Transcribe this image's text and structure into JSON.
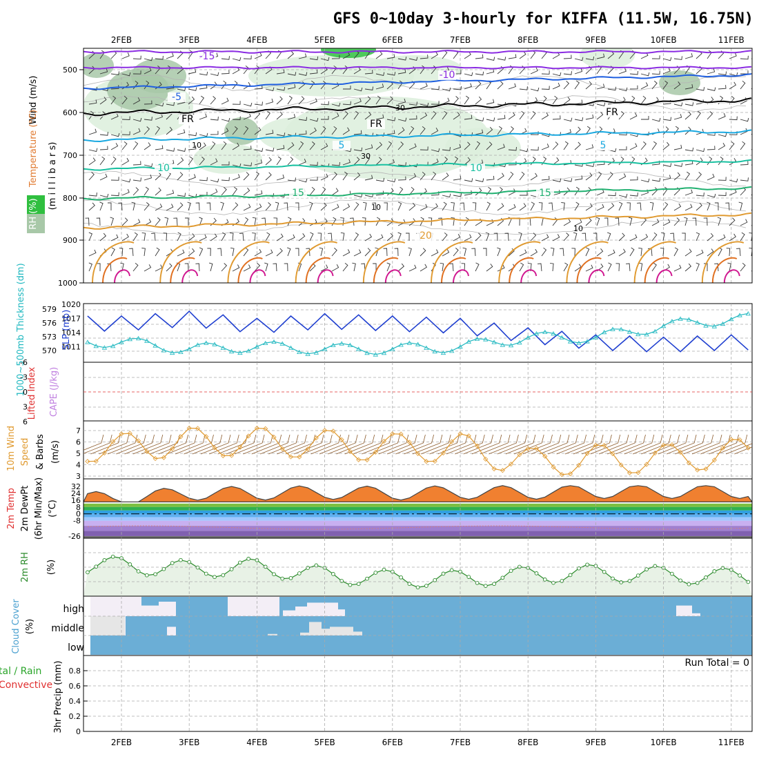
{
  "title": "GFS 0~10day 3-hourly for KIFFA (11.5W, 16.75N)",
  "dates": [
    "2FEB",
    "3FEB",
    "4FEB",
    "5FEB",
    "6FEB",
    "7FEB",
    "8FEB",
    "9FEB",
    "10FEB",
    "11FEB"
  ],
  "colors": {
    "background": "#ffffff",
    "grid": "#aaaaaa",
    "frame": "#000000",
    "rh_light": "#dcefdc",
    "rh_mid": "#a8c8a8",
    "rh_dark": "#5fa05f",
    "rh_green": "#2fbf3f",
    "temp_purple": "#8a2be2",
    "temp_blue": "#1f5fe0",
    "temp_cyan": "#18a8e0",
    "temp_teal": "#18c0a0",
    "temp_green": "#20b070",
    "temp_orange": "#e09a30",
    "temp_magenta": "#d01890",
    "slp": "#1f3fd0",
    "thickness": "#20b8c0",
    "wind": "#e09a30",
    "barb": "#8b5a2b",
    "rh_line": "#2a8a2a",
    "rh_fill": "#e8f2e6",
    "cloud": "#6baed6",
    "cloud_clear": "#f3eef6",
    "cloud_clear2": "#e6e6e6",
    "precip_label": "#2aa52a",
    "convective": "#e03030",
    "lifted_index": "#e03030",
    "cape": "#c080e0",
    "dewpt_line": "#d08080"
  },
  "panels": {
    "upper": {
      "y_ticks": [
        "500",
        "600",
        "700",
        "800",
        "900",
        "1000"
      ],
      "labels": {
        "wind": "Wind (m/s)",
        "temperature": "Temperature (°C)",
        "rh": "RH (%)",
        "millibars": "(m i l l i b a r s)"
      },
      "contour_labels": [
        "-15",
        "-10",
        "-5",
        "FR",
        "5",
        "10",
        "15",
        "20",
        "5",
        "10",
        "15",
        "-10",
        "-5",
        "5",
        "FR",
        "FR",
        "30",
        "10",
        "30",
        "10",
        "10",
        "-5"
      ]
    },
    "slp": {
      "left_ticks": [
        "579",
        "576",
        "573",
        "570"
      ],
      "right_ticks": [
        "1020",
        "1017",
        "1014",
        "1011"
      ],
      "labels": {
        "thickness": "1000~500mb Thickness (dm)",
        "slp": "SLP (mb)"
      }
    },
    "stability": {
      "ticks": [
        "-6",
        "-3",
        "0",
        "3",
        "6"
      ],
      "labels": {
        "lifted_index": "Lifted Index",
        "cape": "CAPE (J/kg)"
      }
    },
    "wind10m": {
      "ticks": [
        "7",
        "6",
        "5",
        "4",
        "3"
      ],
      "labels": {
        "main": "10m Wind",
        "speed": "Speed",
        "barbs": "& Barbs",
        "units": "(m/s)"
      }
    },
    "temp2m": {
      "ticks": [
        "32",
        "24",
        "16",
        "8",
        "0",
        "-8",
        "-26"
      ],
      "labels": {
        "temp": "2m Temp",
        "dewpt": "2m DewPt",
        "minmax": "(6hr Min/Max)",
        "units": "(°C)"
      }
    },
    "rh2m": {
      "labels": {
        "main": "2m RH",
        "units": "(%)"
      }
    },
    "cloud": {
      "levels": [
        "high",
        "middle",
        "low"
      ],
      "labels": {
        "main": "Cloud Cover",
        "units": "(%)"
      }
    },
    "precip": {
      "ticks": [
        "0.8",
        "0.6",
        "0.4",
        "0.2",
        "0"
      ],
      "run_total": "Run Total = 0",
      "labels": {
        "total_rain": "tal / Rain",
        "convective": "Convective",
        "main": "3hr Precip (mm)"
      }
    }
  },
  "chart_data": [
    {
      "type": "line",
      "title": "1000~500mb Thickness (dm) / SLP (mb)",
      "x": [
        "2FEB",
        "3FEB",
        "4FEB",
        "5FEB",
        "6FEB",
        "7FEB",
        "8FEB",
        "9FEB",
        "10FEB",
        "11FEB"
      ],
      "series": [
        {
          "name": "SLP (mb)",
          "values": [
            1016.5,
            1017.5,
            1016,
            1017,
            1016.5,
            1016,
            1014,
            1012.5,
            1012,
            1012.5
          ]
        },
        {
          "name": "1000~500mb Thickness (dm)",
          "values": [
            572,
            570.5,
            571,
            570.5,
            570.5,
            571,
            573,
            573,
            575.5,
            577
          ]
        }
      ],
      "ylim_left": [
        568,
        580
      ],
      "ylim_right": [
        1008,
        1020
      ]
    },
    {
      "type": "line",
      "title": "10m Wind Speed",
      "x": [
        "2FEB",
        "3FEB",
        "4FEB",
        "5FEB",
        "6FEB",
        "7FEB",
        "8FEB",
        "9FEB",
        "10FEB",
        "11FEB"
      ],
      "series": [
        {
          "name": "Speed",
          "values": [
            5.5,
            6.0,
            6.0,
            5.8,
            5.5,
            5.5,
            4.2,
            4.5,
            4.5,
            5.0
          ]
        }
      ],
      "ylim": [
        3,
        7.5
      ]
    },
    {
      "type": "area",
      "title": "2m Temp",
      "x": [
        "2FEB",
        "3FEB",
        "4FEB",
        "5FEB",
        "6FEB",
        "7FEB",
        "8FEB",
        "9FEB",
        "10FEB",
        "11FEB"
      ],
      "series": [
        {
          "name": "2m Temp",
          "values": [
            24,
            30,
            30,
            31,
            30,
            31,
            31,
            32,
            32,
            32
          ]
        }
      ],
      "ylim": [
        -26,
        34
      ]
    },
    {
      "type": "line",
      "title": "2m RH",
      "x": [
        "2FEB",
        "3FEB",
        "4FEB",
        "5FEB",
        "6FEB",
        "7FEB",
        "8FEB",
        "9FEB",
        "10FEB",
        "11FEB"
      ],
      "series": [
        {
          "name": "2m RH",
          "values": [
            32,
            28,
            30,
            22,
            18,
            18,
            22,
            24,
            22,
            20
          ]
        }
      ],
      "ylim": [
        0,
        60
      ]
    },
    {
      "type": "bar",
      "title": "3hr Precip (mm)",
      "categories": [
        "2FEB",
        "3FEB",
        "4FEB",
        "5FEB",
        "6FEB",
        "7FEB",
        "8FEB",
        "9FEB",
        "10FEB",
        "11FEB"
      ],
      "values": [
        0,
        0,
        0,
        0,
        0,
        0,
        0,
        0,
        0,
        0
      ],
      "ylim": [
        0,
        0.9
      ]
    }
  ]
}
